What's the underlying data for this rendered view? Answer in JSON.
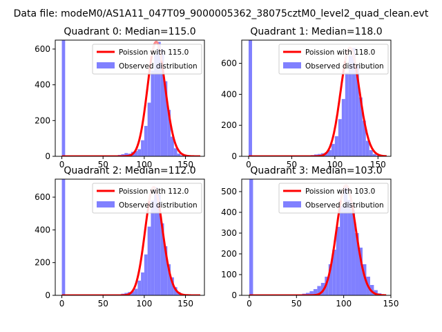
{
  "figure": {
    "suptitle": "Data file: modeM0/AS1A11_047T09_9000005362_38075cztM0_level2_quad_clean.evt"
  },
  "colors": {
    "fit": "#ff0000",
    "fit_highlight": "#ff9999",
    "hist": "#8080ff",
    "axis": "#000000"
  },
  "chart_data": [
    {
      "type": "bar",
      "title": "Quadrant 0: Median=115.0",
      "xlabel": "",
      "ylabel": "",
      "xlim": [
        -8,
        173
      ],
      "ylim": [
        0,
        650
      ],
      "xticks": [
        0,
        50,
        100,
        150
      ],
      "yticks": [
        0,
        200,
        400,
        600
      ],
      "legend_position": "top-right",
      "series": [
        {
          "name": "Poission with 115.0",
          "kind": "line",
          "mean": 115.0,
          "x_range": [
            0,
            168
          ]
        },
        {
          "name": "Observed distribution",
          "kind": "histogram",
          "bin_width": 4,
          "bins": [
            [
              0,
              650
            ],
            [
              68,
              8
            ],
            [
              72,
              12
            ],
            [
              76,
              18
            ],
            [
              80,
              15
            ],
            [
              84,
              25
            ],
            [
              88,
              30
            ],
            [
              92,
              40
            ],
            [
              96,
              90
            ],
            [
              100,
              170
            ],
            [
              104,
              300
            ],
            [
              108,
              480
            ],
            [
              112,
              570
            ],
            [
              116,
              640
            ],
            [
              120,
              600
            ],
            [
              124,
              420
            ],
            [
              128,
              260
            ],
            [
              132,
              110
            ],
            [
              136,
              45
            ],
            [
              140,
              15
            ],
            [
              144,
              5
            ]
          ]
        }
      ]
    },
    {
      "type": "bar",
      "title": "Quadrant 1: Median=118.0",
      "xlabel": "",
      "ylabel": "",
      "xlim": [
        -8,
        165
      ],
      "ylim": [
        0,
        750
      ],
      "xticks": [
        0,
        50,
        100,
        150
      ],
      "yticks": [
        0,
        200,
        400,
        600
      ],
      "legend_position": "top-right",
      "series": [
        {
          "name": "Poission with 118.0",
          "kind": "line",
          "mean": 118.0,
          "x_range": [
            0,
            160
          ]
        },
        {
          "name": "Observed distribution",
          "kind": "histogram",
          "bin_width": 4,
          "bins": [
            [
              0,
              750
            ],
            [
              72,
              8
            ],
            [
              76,
              12
            ],
            [
              80,
              15
            ],
            [
              84,
              20
            ],
            [
              88,
              25
            ],
            [
              92,
              40
            ],
            [
              96,
              80
            ],
            [
              100,
              130
            ],
            [
              104,
              240
            ],
            [
              108,
              370
            ],
            [
              112,
              540
            ],
            [
              116,
              650
            ],
            [
              120,
              700
            ],
            [
              124,
              590
            ],
            [
              128,
              380
            ],
            [
              132,
              230
            ],
            [
              136,
              100
            ],
            [
              140,
              40
            ],
            [
              144,
              15
            ],
            [
              148,
              5
            ]
          ]
        }
      ]
    },
    {
      "type": "bar",
      "title": "Quadrant 2: Median=112.0",
      "xlabel": "",
      "ylabel": "",
      "xlim": [
        -8,
        173
      ],
      "ylim": [
        0,
        710
      ],
      "xticks": [
        0,
        50,
        100,
        150
      ],
      "yticks": [
        0,
        200,
        400,
        600
      ],
      "legend_position": "top-right",
      "series": [
        {
          "name": "Poission with 112.0",
          "kind": "line",
          "mean": 112.0,
          "x_range": [
            0,
            168
          ]
        },
        {
          "name": "Observed distribution",
          "kind": "histogram",
          "bin_width": 4,
          "bins": [
            [
              0,
              710
            ],
            [
              68,
              5
            ],
            [
              72,
              10
            ],
            [
              76,
              15
            ],
            [
              80,
              20
            ],
            [
              84,
              25
            ],
            [
              88,
              40
            ],
            [
              92,
              90
            ],
            [
              96,
              140
            ],
            [
              100,
              250
            ],
            [
              104,
              420
            ],
            [
              108,
              580
            ],
            [
              112,
              660
            ],
            [
              116,
              620
            ],
            [
              120,
              440
            ],
            [
              124,
              300
            ],
            [
              128,
              190
            ],
            [
              132,
              110
            ],
            [
              136,
              50
            ],
            [
              140,
              20
            ],
            [
              144,
              8
            ]
          ]
        }
      ]
    },
    {
      "type": "bar",
      "title": "Quadrant 3: Median=103.0",
      "xlabel": "",
      "ylabel": "",
      "xlim": [
        -8,
        150
      ],
      "ylim": [
        0,
        560
      ],
      "xticks": [
        0,
        50,
        100,
        150
      ],
      "yticks": [
        0,
        100,
        200,
        300,
        400,
        500
      ],
      "legend_position": "top-right",
      "series": [
        {
          "name": "Poission with 103.0",
          "kind": "line",
          "mean": 103.0,
          "x_range": [
            0,
            145
          ]
        },
        {
          "name": "Observed distribution",
          "kind": "histogram",
          "bin_width": 4,
          "bins": [
            [
              0,
              560
            ],
            [
              56,
              8
            ],
            [
              60,
              12
            ],
            [
              64,
              20
            ],
            [
              68,
              30
            ],
            [
              72,
              45
            ],
            [
              76,
              60
            ],
            [
              80,
              90
            ],
            [
              84,
              150
            ],
            [
              88,
              220
            ],
            [
              92,
              330
            ],
            [
              96,
              430
            ],
            [
              100,
              530
            ],
            [
              104,
              460
            ],
            [
              108,
              410
            ],
            [
              112,
              300
            ],
            [
              116,
              230
            ],
            [
              120,
              150
            ],
            [
              124,
              90
            ],
            [
              128,
              50
            ],
            [
              132,
              25
            ],
            [
              136,
              10
            ]
          ]
        }
      ]
    }
  ]
}
